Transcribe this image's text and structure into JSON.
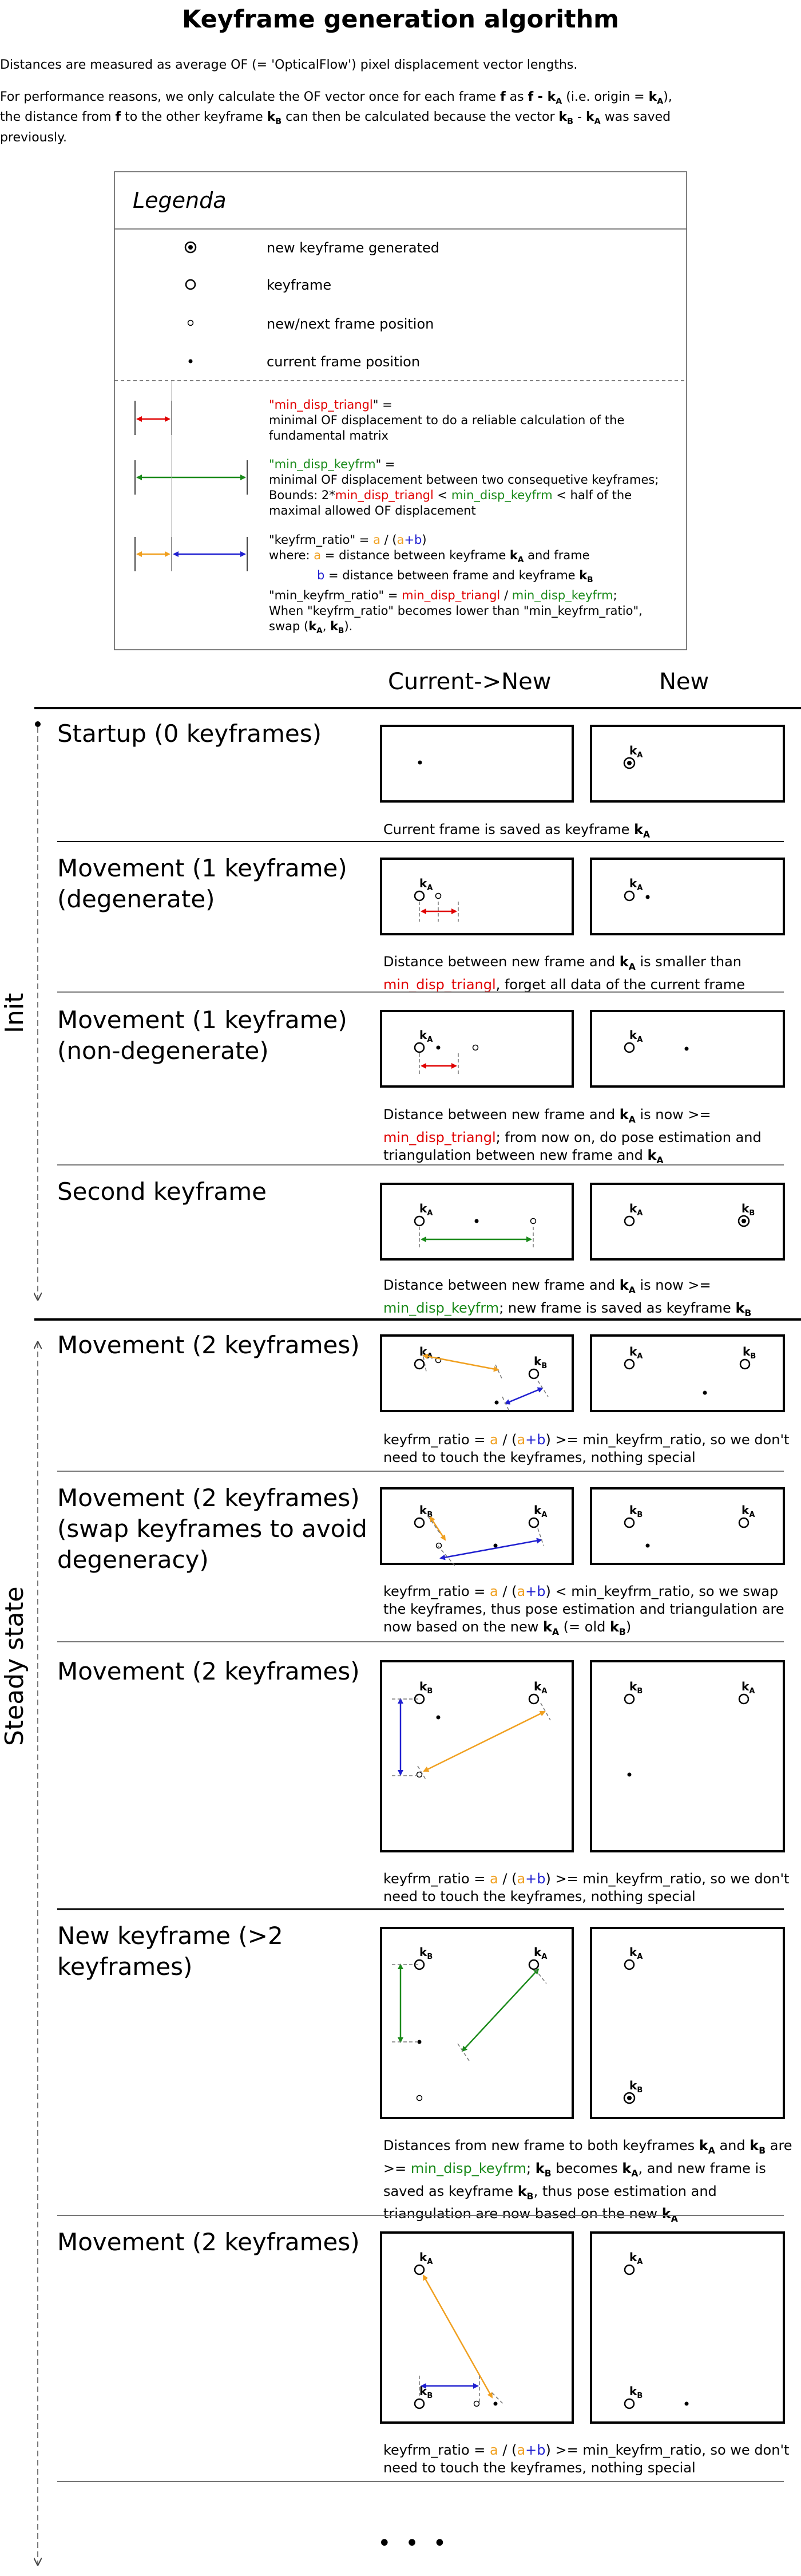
{
  "title": "Keyframe generation algorithm",
  "intro": {
    "p1": "Distances are measured as average OF (= 'OpticalFlow') pixel displacement vector lengths.",
    "p2a": "For performance reasons, we only calculate the OF vector once for each frame ",
    "p2_f": "f",
    "p2b": " as ",
    "p2_expr1": "f - k",
    "p2c": " (i.e. origin = ",
    "p2_expr2": "k",
    "p2d": "),",
    "p3a": "the distance from ",
    "p3_f": "f",
    "p3b": " to the other keyframe ",
    "p3_kb": "k",
    "p3c": " can then be calculated because the vector ",
    "p3_expr": "k",
    "p3_minus": " - ",
    "p3_expr2": "k",
    "p3d": " was saved",
    "p4": "previously.",
    "sub_a": "A",
    "sub_b": "B"
  },
  "legend": {
    "title": "Legenda",
    "rows": [
      {
        "icon": "new-keyframe-icon",
        "label": "new keyframe generated"
      },
      {
        "icon": "keyframe-icon",
        "label": "keyframe"
      },
      {
        "icon": "next-frame-icon",
        "label": "new/next frame position"
      },
      {
        "icon": "current-frame-icon",
        "label": "current frame position"
      }
    ],
    "def1": {
      "q1": "\"",
      "name": "min_disp_triangl",
      "q2": "\" =",
      "desc": "minimal OF displacement to do a reliable calculation of the fundamental matrix"
    },
    "def2": {
      "q1": "\"",
      "name": "min_disp_keyfrm",
      "q2": "\" =",
      "desc1": "minimal OF displacement between two consequetive keyframes;",
      "bounds": "Bounds: 2*",
      "bounds_r": "min_disp_triangl",
      "bounds_lt": " < ",
      "bounds_g": "min_disp_keyfrm",
      "bounds_end": " < half of the",
      "desc2": "maximal allowed OF displacement"
    },
    "def3": {
      "line1a": "\"keyfrm_ratio\" = ",
      "a": "a",
      "slash": " / (",
      "a2": "a",
      "plus": "+",
      "b": "b",
      "close": ")",
      "line2a": "where: ",
      "line2b": " = distance between keyframe ",
      "k": "k",
      "subA": "A",
      "line2c": " and frame",
      "line3a": " = distance between frame and keyframe ",
      "subB": "B",
      "line4a": "\"min_keyfrm_ratio\" = ",
      "line4b": "min_disp_triangl",
      "line4c": " / ",
      "line4d": "min_disp_keyfrm",
      "line4e": ";",
      "line5": "When \"keyfrm_ratio\" becomes lower than \"min_keyfrm_ratio\",",
      "line6a": "swap (",
      "line6b": ", ",
      "line6c": ")."
    }
  },
  "columns": {
    "current": "Current->New",
    "new": "New"
  },
  "phases": {
    "init": "Init",
    "steady": "Steady state"
  },
  "label_k": "k",
  "label_a": "A",
  "label_b": "B",
  "ellipsis": "• • •",
  "sections": [
    {
      "title": "Startup (0 keyframes)",
      "caption": {
        "t1": "Current frame is saved as keyframe ",
        "k": "k",
        "s": "A",
        "t2": ""
      }
    },
    {
      "title": "Movement (1 keyframe) (degenerate)",
      "caption": {
        "t1": "Distance between new frame and ",
        "k": "k",
        "s": "A",
        "t2": " is smaller than ",
        "red": "min_disp_triangl",
        "t3": ", forget all data of the current frame"
      }
    },
    {
      "title": "Movement (1 keyframe) (non-degenerate)",
      "caption": {
        "t1": "Distance between new frame and ",
        "k": "k",
        "s": "A",
        "t2": " is now >= ",
        "red": "min_disp_triangl",
        "t3": "; from now on, do pose estimation and triangulation between new frame and ",
        "k2": "k",
        "s2": "A"
      }
    },
    {
      "title": "Second keyframe",
      "caption": {
        "t1": "Distance between new frame and ",
        "k": "k",
        "s": "A",
        "t2": " is now >= ",
        "green": "min_disp_keyfrm",
        "t3": "; new frame is saved as keyframe ",
        "k2": "k",
        "s2": "B"
      }
    },
    {
      "title": "Movement (2 keyframes)",
      "caption": {
        "t1": "keyfrm_ratio = ",
        "a": "a",
        "t2": " / (",
        "a2": "a",
        "plus": "+",
        "b": "b",
        "t3": ") >= min_keyfrm_ratio, so we don't need to touch the keyframes, nothing special"
      }
    },
    {
      "title": "Movement (2 keyframes) (swap keyframes to avoid degeneracy)",
      "caption": {
        "t1": "keyfrm_ratio = ",
        "a": "a",
        "t2": " / (",
        "a2": "a",
        "plus": "+",
        "b": "b",
        "t3": ") < min_keyfrm_ratio, so we swap the keyframes, thus pose estimation and triangulation are now based on the new ",
        "k": "k",
        "s": "A",
        "t4": " (= old ",
        "k2": "k",
        "s2": "B",
        "t5": ")"
      }
    },
    {
      "title": "Movement (2 keyframes)",
      "caption": {
        "t1": "keyfrm_ratio = ",
        "a": "a",
        "t2": " / (",
        "a2": "a",
        "plus": "+",
        "b": "b",
        "t3": ") >= min_keyfrm_ratio, so we don't need to touch the keyframes, nothing special"
      }
    },
    {
      "title": "New keyframe (>2 keyframes)",
      "caption": {
        "t1": "Distances from new frame to both keyframes ",
        "k": "k",
        "s": "A",
        "t2": " and ",
        "k2": "k",
        "s2": "B",
        "t3": " are >= ",
        "green": "min_disp_keyfrm",
        "t4": "; ",
        "k3": "k",
        "s3": "B",
        "t5": " becomes ",
        "k4": "k",
        "s4": "A",
        "t6": ", and new frame is saved as keyframe ",
        "k5": "k",
        "s5": "B",
        "t7": ", thus pose estimation and triangulation are now based on the new ",
        "k6": "k",
        "s6": "A"
      }
    },
    {
      "title": "Movement (2 keyframes)",
      "caption": {
        "t1": "keyfrm_ratio = ",
        "a": "a",
        "t2": " / (",
        "a2": "a",
        "plus": "+",
        "b": "b",
        "t3": ") >= min_keyfrm_ratio, so we don't need to touch the keyframes, nothing special"
      }
    }
  ]
}
